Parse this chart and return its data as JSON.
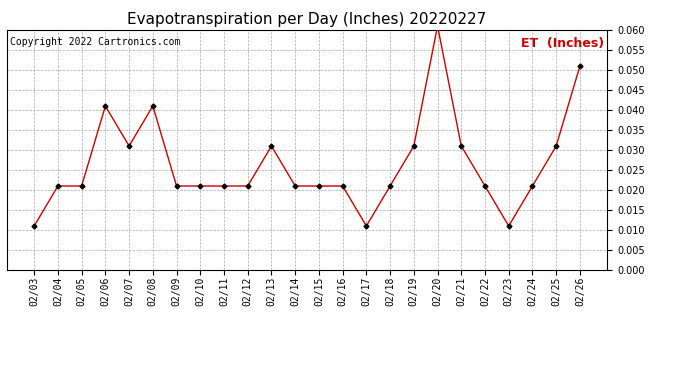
{
  "title": "Evapotranspiration per Day (Inches) 20220227",
  "copyright": "Copyright 2022 Cartronics.com",
  "legend_label": "ET  (Inches)",
  "dates": [
    "02/03",
    "02/04",
    "02/05",
    "02/06",
    "02/07",
    "02/08",
    "02/09",
    "02/10",
    "02/11",
    "02/12",
    "02/13",
    "02/14",
    "02/15",
    "02/16",
    "02/17",
    "02/18",
    "02/19",
    "02/20",
    "02/21",
    "02/22",
    "02/23",
    "02/24",
    "02/25",
    "02/26"
  ],
  "values": [
    0.011,
    0.021,
    0.021,
    0.041,
    0.031,
    0.041,
    0.021,
    0.021,
    0.021,
    0.021,
    0.031,
    0.021,
    0.021,
    0.021,
    0.011,
    0.021,
    0.031,
    0.061,
    0.031,
    0.021,
    0.011,
    0.021,
    0.031,
    0.051
  ],
  "line_color": "#cc0000",
  "marker_color": "#000000",
  "ylim": [
    0.0,
    0.06
  ],
  "yticks": [
    0.0,
    0.005,
    0.01,
    0.015,
    0.02,
    0.025,
    0.03,
    0.035,
    0.04,
    0.045,
    0.05,
    0.055,
    0.06
  ],
  "bg_color": "#ffffff",
  "grid_color": "#aaaaaa",
  "title_fontsize": 11,
  "copyright_fontsize": 7,
  "legend_fontsize": 9,
  "tick_fontsize": 7
}
